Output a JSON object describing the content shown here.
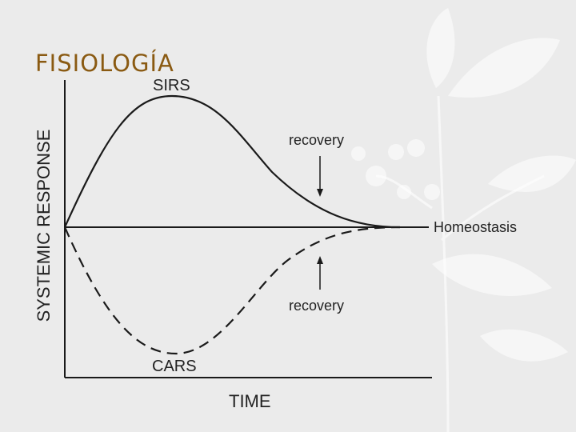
{
  "slide_title": "FISIOLOGÍA",
  "diagram": {
    "y_axis_label": "SYSTEMIC RESPONSE",
    "x_axis_label": "TIME",
    "curve_top_label": "SIRS",
    "curve_bottom_label": "CARS",
    "baseline_label": "Homeostasis",
    "recovery_top_label": "recovery",
    "recovery_bottom_label": "recovery"
  },
  "colors": {
    "background": "#ebebeb",
    "title": "#8a5a12",
    "ink": "#1a1a1a",
    "foliage": "#ffffff"
  }
}
